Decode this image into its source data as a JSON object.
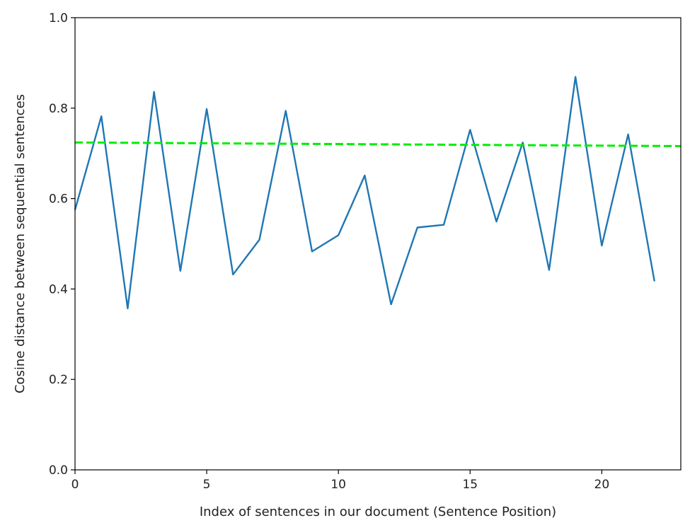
{
  "chart_data": {
    "type": "line",
    "title": "",
    "xlabel": "Index of sentences in our document (Sentence Position)",
    "ylabel": "Cosine distance between sequential sentences",
    "xlim": [
      0,
      23
    ],
    "ylim": [
      0.0,
      1.0
    ],
    "x_ticks": [
      0,
      5,
      10,
      15,
      20
    ],
    "x_tick_labels": [
      "0",
      "5",
      "10",
      "15",
      "20"
    ],
    "y_ticks": [
      0.0,
      0.2,
      0.4,
      0.6,
      0.8,
      1.0
    ],
    "y_tick_labels": [
      "0.0",
      "0.2",
      "0.4",
      "0.6",
      "0.8",
      "1.0"
    ],
    "grid": false,
    "series": [
      {
        "color": "#1f77b4",
        "style": "solid",
        "x": [
          0,
          1,
          2,
          3,
          4,
          5,
          6,
          7,
          8,
          9,
          10,
          11,
          12,
          13,
          14,
          15,
          16,
          17,
          18,
          19,
          20,
          21,
          22
        ],
        "y": [
          0.575,
          0.782,
          0.357,
          0.836,
          0.44,
          0.798,
          0.432,
          0.509,
          0.794,
          0.483,
          0.519,
          0.651,
          0.366,
          0.536,
          0.542,
          0.752,
          0.549,
          0.724,
          0.442,
          0.869,
          0.496,
          0.742,
          0.417
        ]
      },
      {
        "color": "#00ee00",
        "style": "dashed",
        "x": [
          0,
          23
        ],
        "y": [
          0.724,
          0.716
        ]
      }
    ]
  }
}
